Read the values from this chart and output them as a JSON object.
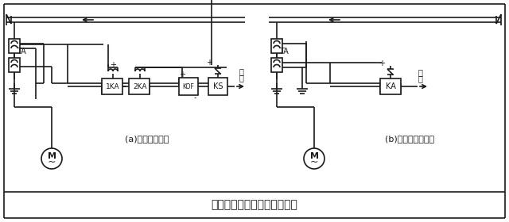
{
  "title": "电动机电流速断保护原理接线",
  "label_a": "(a)两相星形接线",
  "label_b": "(b)两相电流差接线",
  "bg_color": "#ffffff",
  "line_color": "#1a1a1a",
  "font_size_title": 10,
  "font_size_label": 8,
  "font_size_small": 6.5
}
